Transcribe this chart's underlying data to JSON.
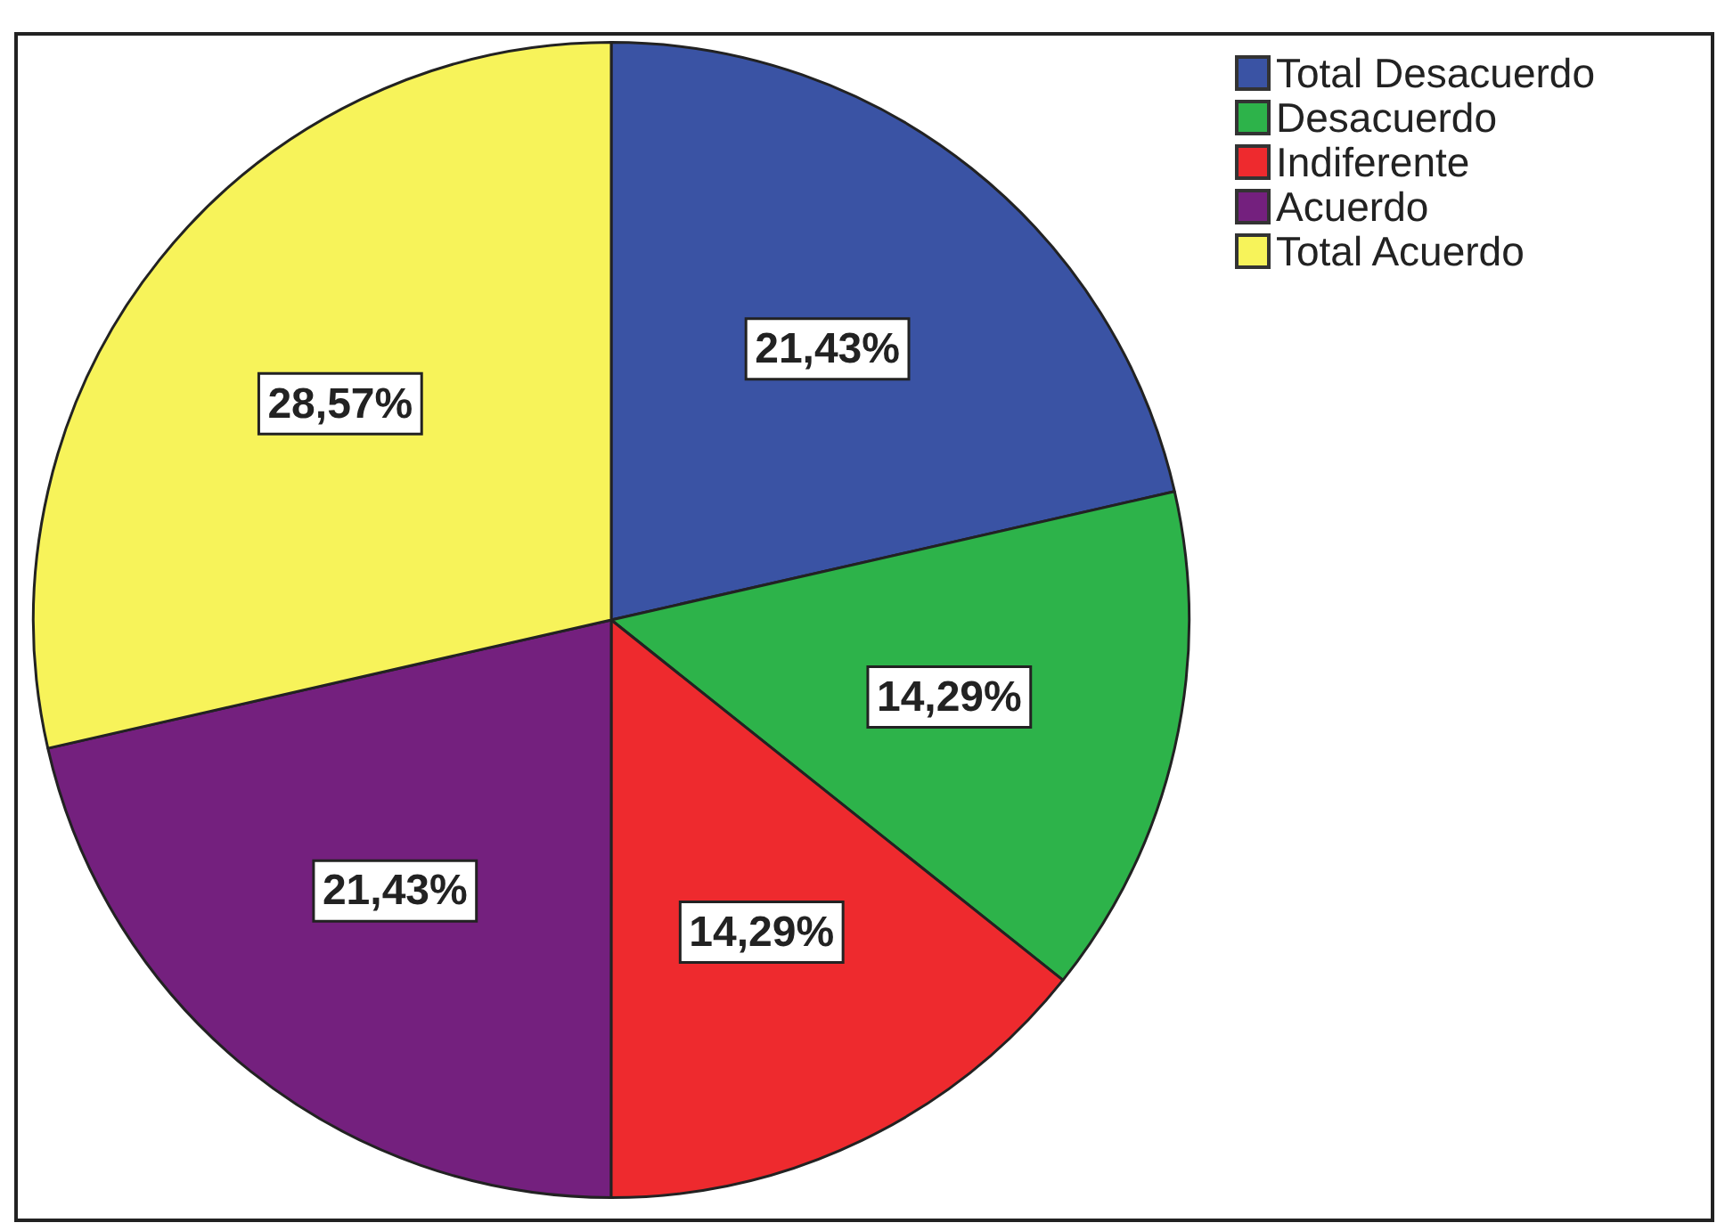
{
  "chart_data": {
    "type": "pie",
    "categories": [
      "Total Desacuerdo",
      "Desacuerdo",
      "Indiferente",
      "Acuerdo",
      "Total Acuerdo"
    ],
    "values": [
      21.43,
      14.29,
      14.29,
      21.43,
      28.57
    ],
    "colors": [
      "#3a53a4",
      "#2db34a",
      "#ee2a2e",
      "#74207e",
      "#f7f35a"
    ],
    "value_labels": [
      "21,43%",
      "14,29%",
      "14,29%",
      "21,43%",
      "28,57%"
    ],
    "legend": "top right"
  }
}
